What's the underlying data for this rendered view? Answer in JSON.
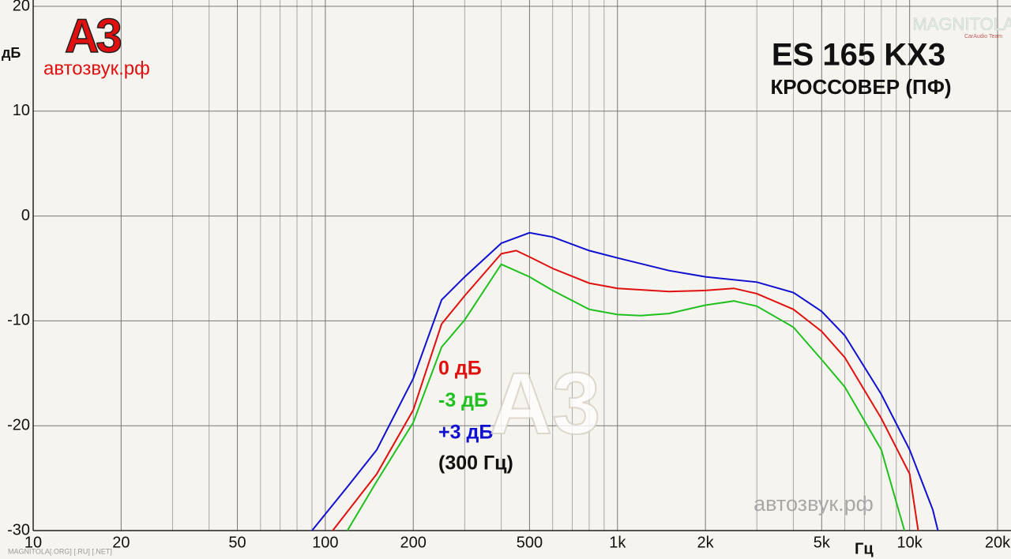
{
  "chart_data": {
    "type": "line",
    "title": "ES 165 KX3",
    "subtitle": "КРОССОВЕР (ПФ)",
    "y_label": "дБ",
    "x_label": "Гц",
    "logo": "A3",
    "logo_site": "автозвук.рф",
    "watermark": "автозвук.рф",
    "watermark_logo": "A3",
    "corner_logo": "MAGNITOLA",
    "corner_logo_sub": "CarAudio Team",
    "footer": "MAGNITOLA[.ORG] [.RU] [.NET]",
    "note": "(300 Гц)",
    "xscale": "log",
    "grid": true,
    "xlim": [
      10,
      20000
    ],
    "ylim": [
      -30,
      20
    ],
    "xticks": [
      10,
      20,
      50,
      100,
      200,
      500,
      {
        "value": 1000,
        "label": "1k"
      },
      {
        "value": 2000,
        "label": "2k"
      },
      {
        "value": 5000,
        "label": "5k"
      },
      {
        "value": 10000,
        "label": "10k"
      },
      {
        "value": 20000,
        "label": "20k"
      }
    ],
    "xgrid_minor": [
      30,
      40,
      60,
      70,
      80,
      90,
      300,
      400,
      600,
      700,
      800,
      900,
      3000,
      4000,
      6000,
      7000,
      8000,
      9000
    ],
    "yticks": [
      20,
      10,
      0,
      -10,
      -20,
      -30
    ],
    "series": [
      {
        "name": "0 дБ",
        "color": "#e01010",
        "x": [
          106,
          150,
          200,
          250,
          300,
          400,
          450,
          500,
          600,
          800,
          1000,
          1500,
          2000,
          2500,
          3000,
          4000,
          5000,
          6000,
          8000,
          10000,
          10700
        ],
        "values": [
          -30,
          -24.6,
          -18.5,
          -10.3,
          -7.6,
          -3.6,
          -3.3,
          -3.9,
          -5.0,
          -6.4,
          -6.9,
          -7.2,
          -7.1,
          -6.9,
          -7.4,
          -8.9,
          -11.0,
          -13.5,
          -19.3,
          -24.6,
          -30
        ]
      },
      {
        "name": "-3 дБ",
        "color": "#20c020",
        "x": [
          119,
          150,
          200,
          250,
          300,
          400,
          500,
          600,
          800,
          1000,
          1200,
          1500,
          2000,
          2500,
          3000,
          4000,
          5000,
          6000,
          8000,
          9600
        ],
        "values": [
          -30,
          -25.3,
          -19.7,
          -12.5,
          -9.9,
          -4.6,
          -5.8,
          -7.1,
          -8.9,
          -9.4,
          -9.5,
          -9.3,
          -8.5,
          -8.1,
          -8.6,
          -10.6,
          -13.7,
          -16.3,
          -22.3,
          -30
        ]
      },
      {
        "name": "+3 дБ",
        "color": "#1010d0",
        "x": [
          90,
          120,
          150,
          200,
          250,
          300,
          400,
          500,
          600,
          800,
          1000,
          1500,
          2000,
          3000,
          4000,
          5000,
          6000,
          8000,
          10000,
          12000,
          12500
        ],
        "values": [
          -30,
          -25.7,
          -22.3,
          -15.5,
          -8,
          -5.8,
          -2.6,
          -1.6,
          -2.0,
          -3.3,
          -4.0,
          -5.2,
          -5.8,
          -6.3,
          -7.3,
          -9.1,
          -11.4,
          -17,
          -22.3,
          -28,
          -30
        ]
      }
    ]
  }
}
